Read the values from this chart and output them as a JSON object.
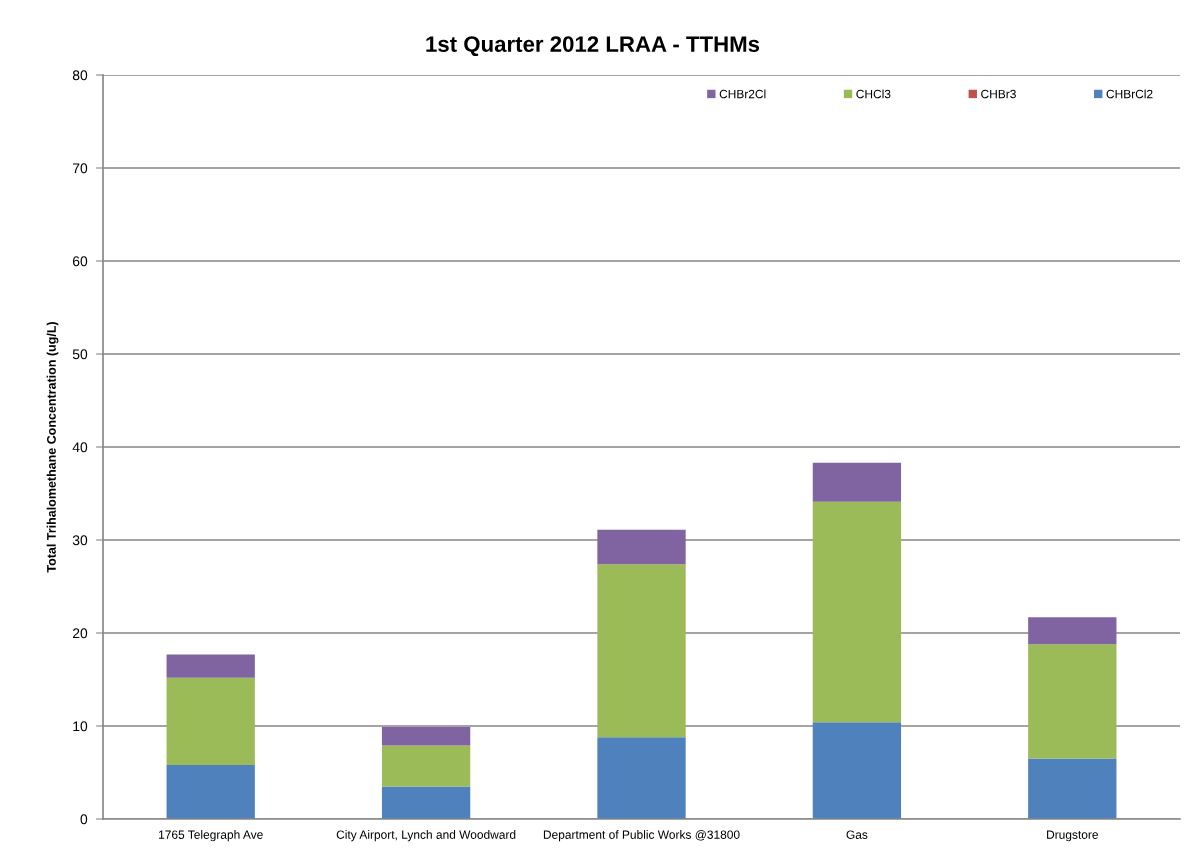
{
  "chart_data": {
    "type": "bar",
    "stacked": true,
    "title": "1st Quarter 2012 LRAA - TTHMs",
    "ylabel": "Total Trihalomethane Concentration (ug/L)",
    "categories": [
      "1765 Telegraph Ave",
      "City Airport, Lynch and Woodward",
      "Department of Public Works @31800",
      "Gas",
      "Drugstore"
    ],
    "series": [
      {
        "name": "CHBrCl2",
        "color": "#4f81bd",
        "values": [
          5.8,
          3.5,
          8.8,
          10.4,
          6.5
        ]
      },
      {
        "name": "CHBr3",
        "color": "#c0504d",
        "values": [
          0,
          0,
          0,
          0,
          0
        ]
      },
      {
        "name": "CHCl3",
        "color": "#9bbb59",
        "values": [
          9.4,
          4.4,
          18.6,
          23.7,
          12.3
        ]
      },
      {
        "name": "CHBr2Cl",
        "color": "#8064a2",
        "values": [
          2.5,
          2.0,
          3.7,
          4.2,
          2.9
        ]
      }
    ],
    "ylim": [
      0,
      80
    ],
    "yticks": [
      0,
      10,
      20,
      30,
      40,
      50,
      60,
      70,
      80
    ],
    "grid": "y",
    "legend": "top right"
  }
}
